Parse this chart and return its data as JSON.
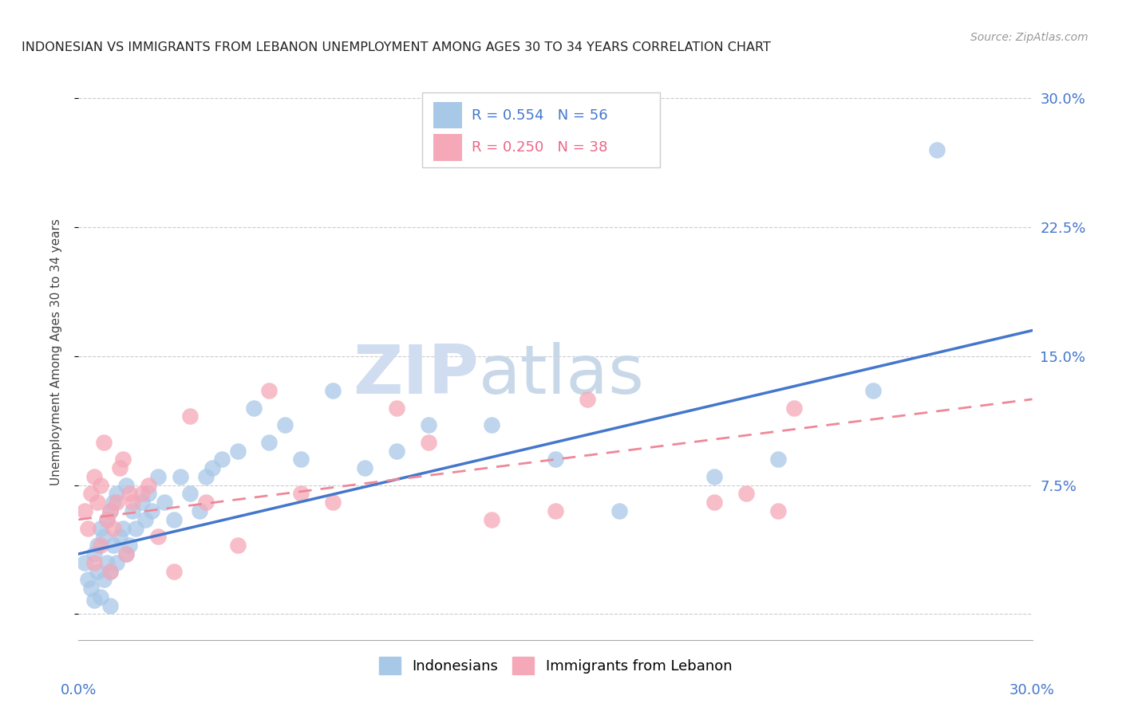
{
  "title": "INDONESIAN VS IMMIGRANTS FROM LEBANON UNEMPLOYMENT AMONG AGES 30 TO 34 YEARS CORRELATION CHART",
  "source": "Source: ZipAtlas.com",
  "ylabel": "Unemployment Among Ages 30 to 34 years",
  "legend_label_blue": "Indonesians",
  "legend_label_pink": "Immigrants from Lebanon",
  "r_blue": "R = 0.554",
  "n_blue": "N = 56",
  "r_pink": "R = 0.250",
  "n_pink": "N = 38",
  "xmin": 0.0,
  "xmax": 0.3,
  "ymin": -0.015,
  "ymax": 0.32,
  "yticks": [
    0.0,
    0.075,
    0.15,
    0.225,
    0.3
  ],
  "ytick_labels": [
    "",
    "7.5%",
    "15.0%",
    "22.5%",
    "30.0%"
  ],
  "blue_color": "#A8C8E8",
  "pink_color": "#F5A8B8",
  "blue_line_color": "#4477CC",
  "pink_line_color": "#EE8899",
  "watermark_zip": "ZIP",
  "watermark_atlas": "atlas",
  "background_color": "#FFFFFF",
  "blue_scatter_x": [
    0.002,
    0.003,
    0.004,
    0.005,
    0.005,
    0.006,
    0.006,
    0.007,
    0.007,
    0.008,
    0.008,
    0.009,
    0.009,
    0.01,
    0.01,
    0.01,
    0.011,
    0.011,
    0.012,
    0.012,
    0.013,
    0.014,
    0.015,
    0.015,
    0.016,
    0.017,
    0.018,
    0.02,
    0.021,
    0.022,
    0.023,
    0.025,
    0.027,
    0.03,
    0.032,
    0.035,
    0.038,
    0.04,
    0.042,
    0.045,
    0.05,
    0.055,
    0.06,
    0.065,
    0.07,
    0.08,
    0.09,
    0.1,
    0.11,
    0.13,
    0.15,
    0.17,
    0.2,
    0.22,
    0.25,
    0.27
  ],
  "blue_scatter_y": [
    0.03,
    0.02,
    0.015,
    0.008,
    0.035,
    0.025,
    0.04,
    0.01,
    0.05,
    0.02,
    0.045,
    0.03,
    0.055,
    0.005,
    0.025,
    0.06,
    0.04,
    0.065,
    0.03,
    0.07,
    0.045,
    0.05,
    0.035,
    0.075,
    0.04,
    0.06,
    0.05,
    0.065,
    0.055,
    0.07,
    0.06,
    0.08,
    0.065,
    0.055,
    0.08,
    0.07,
    0.06,
    0.08,
    0.085,
    0.09,
    0.095,
    0.12,
    0.1,
    0.11,
    0.09,
    0.13,
    0.085,
    0.095,
    0.11,
    0.11,
    0.09,
    0.06,
    0.08,
    0.09,
    0.13,
    0.27
  ],
  "pink_scatter_x": [
    0.002,
    0.003,
    0.004,
    0.005,
    0.005,
    0.006,
    0.007,
    0.007,
    0.008,
    0.009,
    0.01,
    0.01,
    0.011,
    0.012,
    0.013,
    0.014,
    0.015,
    0.016,
    0.017,
    0.02,
    0.022,
    0.025,
    0.03,
    0.035,
    0.04,
    0.05,
    0.06,
    0.07,
    0.08,
    0.1,
    0.11,
    0.13,
    0.15,
    0.16,
    0.2,
    0.21,
    0.22,
    0.225
  ],
  "pink_scatter_y": [
    0.06,
    0.05,
    0.07,
    0.08,
    0.03,
    0.065,
    0.04,
    0.075,
    0.1,
    0.055,
    0.025,
    0.06,
    0.05,
    0.065,
    0.085,
    0.09,
    0.035,
    0.07,
    0.065,
    0.07,
    0.075,
    0.045,
    0.025,
    0.115,
    0.065,
    0.04,
    0.13,
    0.07,
    0.065,
    0.12,
    0.1,
    0.055,
    0.06,
    0.125,
    0.065,
    0.07,
    0.06,
    0.12
  ],
  "blue_line_x0": 0.0,
  "blue_line_y0": 0.035,
  "blue_line_x1": 0.3,
  "blue_line_y1": 0.165,
  "pink_line_x0": 0.0,
  "pink_line_y0": 0.055,
  "pink_line_x1": 0.3,
  "pink_line_y1": 0.125
}
